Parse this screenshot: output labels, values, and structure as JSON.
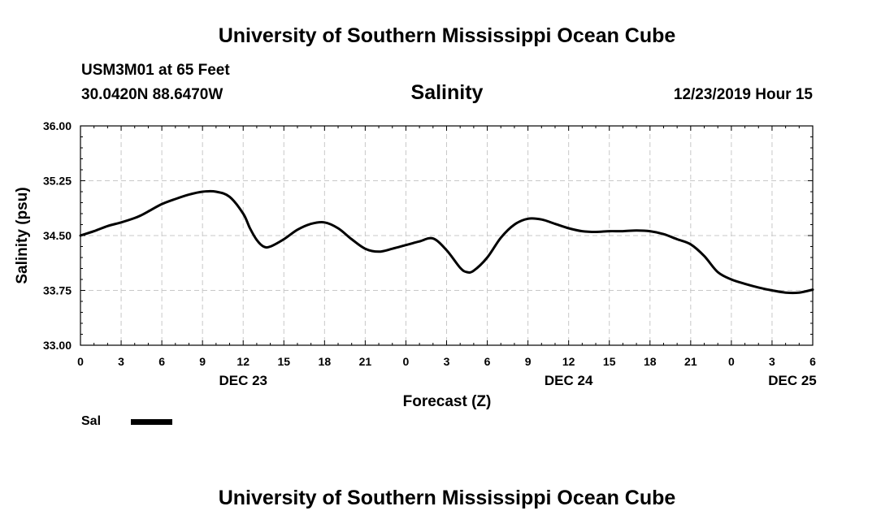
{
  "header": {
    "title": "University of Southern Mississippi Ocean Cube",
    "station": "USM3M01 at 65 Feet",
    "coords": "30.0420N 88.6470W",
    "timestamp": "12/23/2019 Hour 15"
  },
  "footer": {
    "title": "University of Southern Mississippi Ocean Cube"
  },
  "chart_data": {
    "type": "line",
    "title": "Salinity",
    "xlabel": "Forecast (Z)",
    "ylabel": "Salinity (psu)",
    "ylim": [
      33.0,
      36.0
    ],
    "yticks": [
      "33.00",
      "33.75",
      "34.50",
      "35.25",
      "36.00"
    ],
    "xlim": [
      0,
      54
    ],
    "xtick_labels": [
      "0",
      "3",
      "6",
      "9",
      "12",
      "15",
      "18",
      "21",
      "0",
      "3",
      "6",
      "9",
      "12",
      "15",
      "18",
      "21",
      "0",
      "3",
      "6"
    ],
    "date_labels": [
      {
        "label": "DEC 23",
        "at": 12
      },
      {
        "label": "DEC 24",
        "at": 36
      },
      {
        "label": "DEC 25",
        "at": 52.5
      }
    ],
    "grid": true,
    "legend": {
      "position": "bottom-left",
      "label": "Sal",
      "color": "#000000"
    },
    "series": [
      {
        "name": "Sal",
        "color": "#000000",
        "x": [
          0,
          1,
          2,
          3,
          4,
          4.5,
          5,
          6,
          7,
          8,
          9,
          10,
          11,
          12,
          12.5,
          13,
          13.5,
          14,
          15,
          16,
          17,
          18,
          19,
          20,
          21,
          22,
          23,
          24,
          25,
          26,
          27,
          28,
          28.5,
          29,
          30,
          31,
          32,
          33,
          34,
          35,
          36,
          37,
          38,
          39,
          40,
          41,
          42,
          43,
          44,
          45,
          46,
          47,
          48,
          49,
          50,
          51,
          52,
          53,
          54
        ],
        "values": [
          34.5,
          34.56,
          34.63,
          34.68,
          34.74,
          34.78,
          34.83,
          34.93,
          35.0,
          35.06,
          35.1,
          35.1,
          35.03,
          34.8,
          34.6,
          34.44,
          34.35,
          34.35,
          34.45,
          34.58,
          34.66,
          34.68,
          34.6,
          34.45,
          34.32,
          34.28,
          34.32,
          34.37,
          34.42,
          34.46,
          34.3,
          34.06,
          34.0,
          34.02,
          34.2,
          34.47,
          34.65,
          34.73,
          34.72,
          34.66,
          34.6,
          34.56,
          34.55,
          34.56,
          34.56,
          34.57,
          34.56,
          34.52,
          34.45,
          34.38,
          34.22,
          34.0,
          33.9,
          33.84,
          33.79,
          33.75,
          33.72,
          33.72,
          33.76
        ]
      }
    ]
  }
}
